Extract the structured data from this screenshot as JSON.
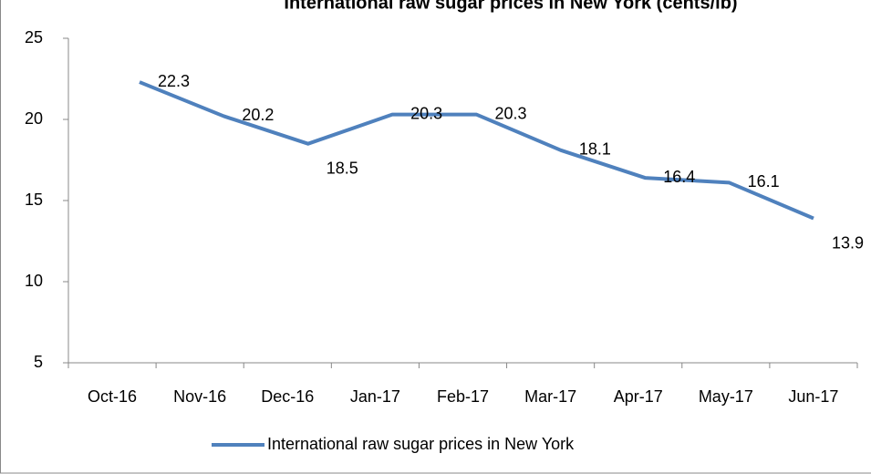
{
  "chart_data": {
    "type": "line",
    "title": "International raw sugar prices in New York (cents/lb)",
    "categories": [
      "Oct-16",
      "Nov-16",
      "Dec-16",
      "Jan-17",
      "Feb-17",
      "Mar-17",
      "Apr-17",
      "May-17",
      "Jun-17"
    ],
    "series": [
      {
        "name": "International raw sugar prices in New York",
        "color": "#4f81bd",
        "values": [
          22.3,
          20.2,
          18.5,
          20.3,
          20.3,
          18.1,
          16.4,
          16.1,
          13.9
        ]
      }
    ],
    "ylim": [
      5,
      25
    ],
    "yticks": [
      5,
      10,
      15,
      20,
      25
    ],
    "grid": false,
    "legend": "bottom"
  }
}
